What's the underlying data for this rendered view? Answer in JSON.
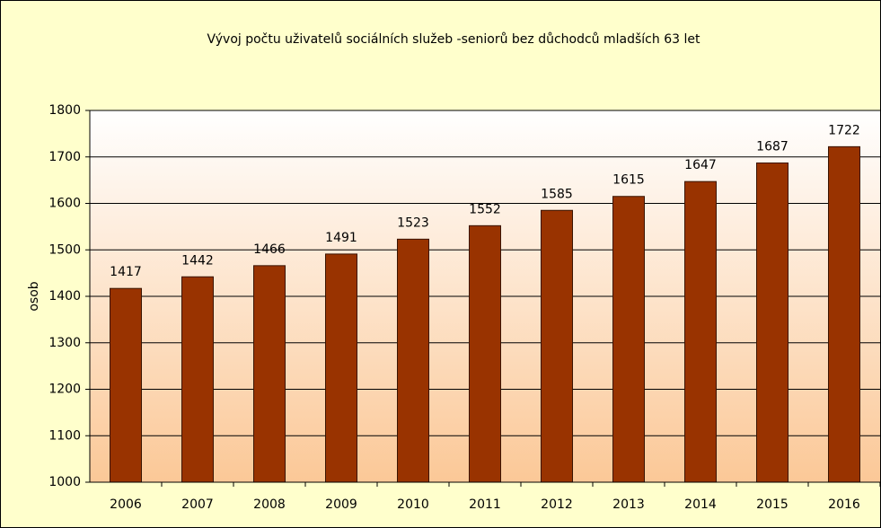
{
  "chart_data": {
    "type": "bar",
    "title": "Vývoj počtu uživatelů sociálních služeb -seniorů bez důchodců mladších 63 let",
    "y_label": "osob",
    "categories": [
      "2006",
      "2007",
      "2008",
      "2009",
      "2010",
      "2011",
      "2012",
      "2013",
      "2014",
      "2015",
      "2016"
    ],
    "values": [
      1417,
      1442,
      1466,
      1491,
      1523,
      1552,
      1585,
      1615,
      1647,
      1687,
      1722
    ],
    "color": "#993300",
    "ylim": [
      1000,
      1800
    ],
    "yticks": [
      1000,
      1100,
      1200,
      1300,
      1400,
      1500,
      1600,
      1700,
      1800
    ],
    "grid": true
  }
}
